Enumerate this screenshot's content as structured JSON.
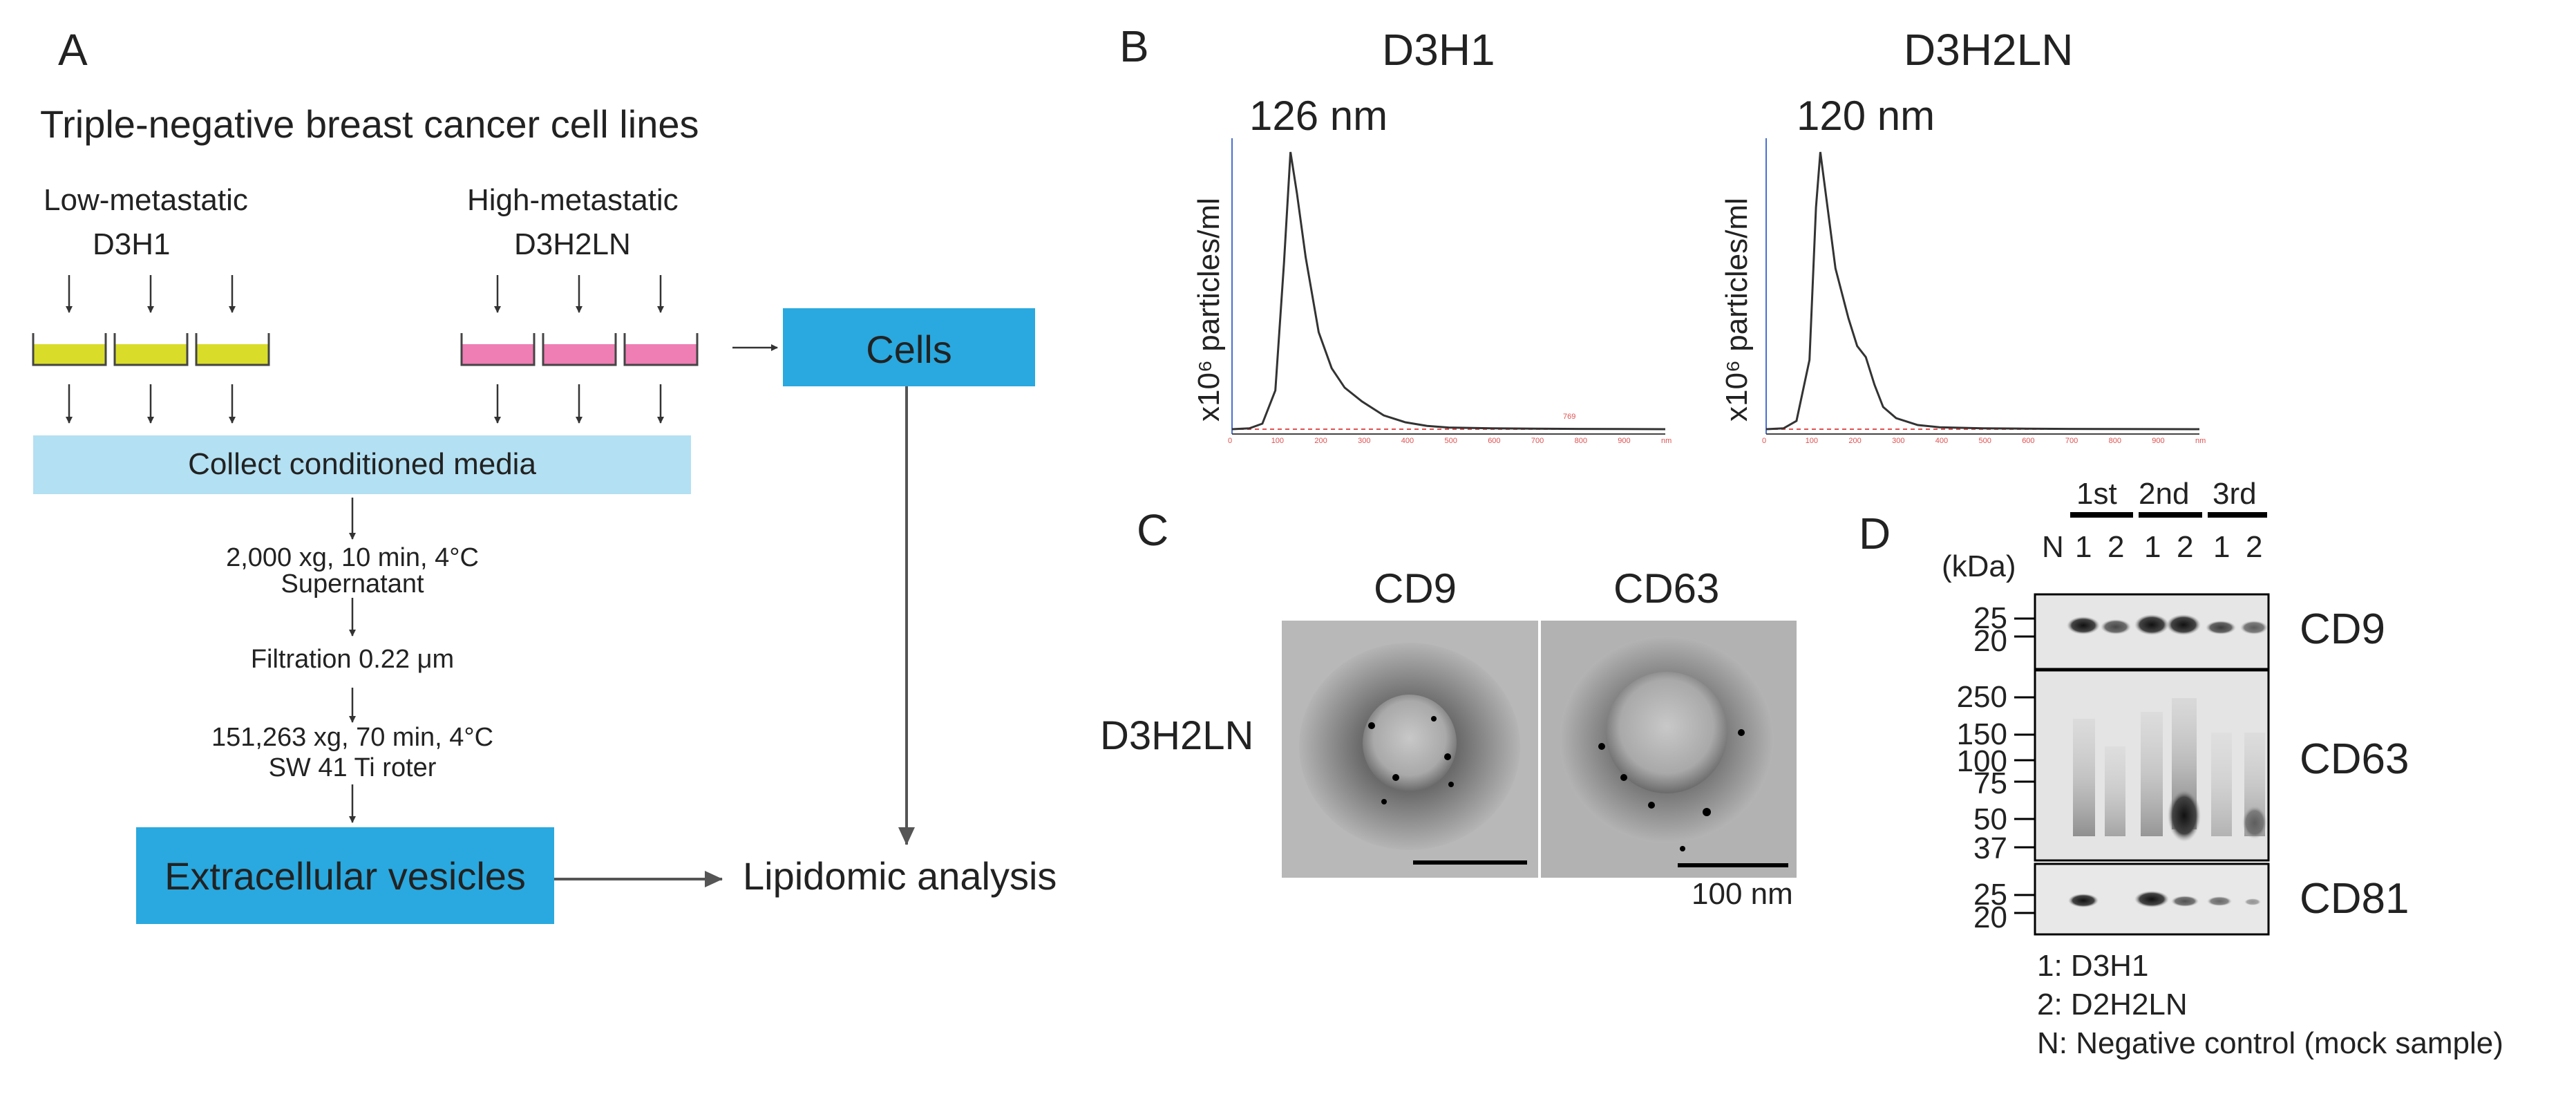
{
  "panels": {
    "A": "A",
    "B": "B",
    "C": "C",
    "D": "D"
  },
  "panelA": {
    "title": "Triple-negative breast cancer cell lines",
    "low_label": "Low-metastatic",
    "low_line": "D3H1",
    "high_label": "High-metastatic",
    "high_line": "D3H2LN",
    "collect": "Collect conditioned media",
    "cells": "Cells",
    "step1a": "2,000 xg, 10 min, 4°C",
    "step1b": "Supernatant",
    "step2": "Filtration 0.22 μm",
    "step3a": "151,263 xg, 70 min, 4°C",
    "step3b": "SW 41 Ti roter",
    "ev": "Extracellular vesicles",
    "lipid": "Lipidomic analysis",
    "colors": {
      "low_dish": "#d9dd2a",
      "high_dish": "#ef7eb4",
      "collect_box": "#b3e0f2",
      "cells_box": "#29a9df",
      "ev_box": "#29a9df"
    }
  },
  "panelB": {
    "plots": [
      {
        "title": "D3H1",
        "peak": "126 nm",
        "ylabel": "x10⁶ particles/ml"
      },
      {
        "title": "D3H2LN",
        "peak": "120 nm",
        "ylabel": "x10⁶ particles/ml"
      }
    ],
    "ticks": [
      "0",
      "100",
      "200",
      "300",
      "400",
      "500",
      "600",
      "700",
      "800",
      "900",
      "nm"
    ],
    "red_label": "769"
  },
  "chart_data": [
    {
      "type": "line",
      "title": "D3H1",
      "annotation": "126 nm",
      "ylabel": "x10⁶ particles/ml",
      "xlabel": "",
      "xlim": [
        0,
        1000
      ],
      "series": [
        {
          "x": [
            0,
            40,
            70,
            100,
            120,
            135,
            150,
            170,
            200,
            230,
            260,
            300,
            350,
            400,
            450,
            500,
            600,
            700,
            800,
            900,
            1000
          ],
          "y": [
            0,
            0.3,
            2,
            14,
            60,
            100,
            85,
            62,
            35,
            22,
            15,
            10,
            5,
            2.5,
            1.2,
            0.6,
            0.3,
            0.2,
            0.1,
            0.05,
            0
          ]
        }
      ]
    },
    {
      "type": "line",
      "title": "D3H2LN",
      "annotation": "120 nm",
      "ylabel": "x10⁶ particles/ml",
      "xlabel": "",
      "xlim": [
        0,
        1000
      ],
      "series": [
        {
          "x": [
            0,
            40,
            70,
            100,
            115,
            125,
            140,
            160,
            190,
            210,
            230,
            250,
            270,
            300,
            350,
            400,
            500,
            600,
            700,
            800,
            900,
            1000
          ],
          "y": [
            0,
            0.3,
            3,
            25,
            80,
            100,
            82,
            58,
            40,
            30,
            26,
            16,
            8,
            4,
            1.5,
            0.7,
            0.3,
            0.2,
            0.1,
            0.05,
            0.02,
            0
          ]
        }
      ]
    }
  ],
  "panelC": {
    "col1": "CD9",
    "col2": "CD63",
    "row": "D3H2LN",
    "scale": "100 nm"
  },
  "panelD": {
    "groups": [
      "1st",
      "2nd",
      "3rd"
    ],
    "lanes": [
      "N",
      "1",
      "2",
      "1",
      "2",
      "1",
      "2"
    ],
    "kda": "(kDa)",
    "blots": [
      {
        "name": "CD9",
        "markers": [
          "25",
          "20"
        ]
      },
      {
        "name": "CD63",
        "markers": [
          "250",
          "150",
          "100",
          "75",
          "50",
          "37"
        ]
      },
      {
        "name": "CD81",
        "markers": [
          "25",
          "20"
        ]
      }
    ],
    "legend": [
      "1: D3H1",
      "2: D2H2LN",
      "N: Negative control (mock sample)"
    ]
  }
}
